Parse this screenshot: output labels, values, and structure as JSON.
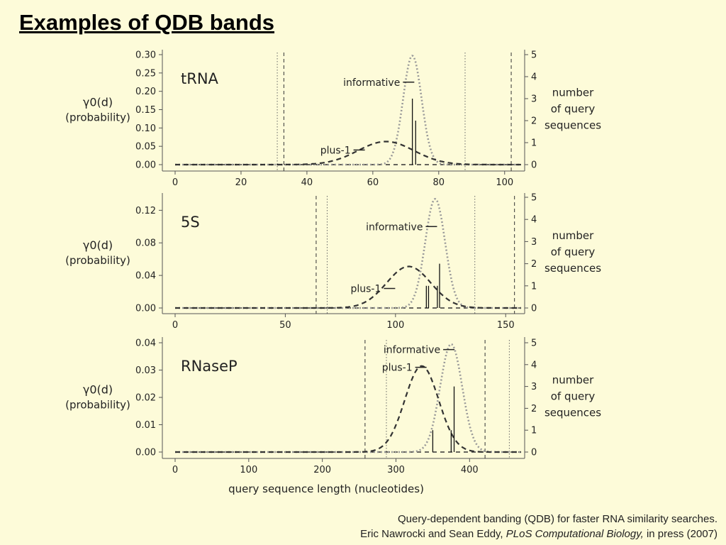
{
  "slide": {
    "title": "Examples of QDB bands"
  },
  "caption": {
    "line1": "Query-dependent banding (QDB) for faster RNA similarity searches.",
    "line2_prefix": "Eric Nawrocki and Sean Eddy, ",
    "line2_journal": "PLoS Computational Biology,",
    "line2_suffix": " in press (2007)"
  },
  "chart_data": [
    {
      "type": "line",
      "title": "tRNA",
      "ylabel": "γ0(d)",
      "ylabel_sub": "(probability)",
      "y2label": [
        "number",
        "of query",
        "sequences"
      ],
      "xlim": [
        0,
        105
      ],
      "ylim": [
        0,
        0.3
      ],
      "y2lim": [
        0,
        5
      ],
      "xticks": [
        0,
        20,
        40,
        60,
        80,
        100
      ],
      "yticks": [
        0,
        0.05,
        0.1,
        0.15,
        0.2,
        0.25,
        0.3
      ],
      "ytick_labels": [
        "0.00",
        "0.05",
        "0.10",
        "0.15",
        "0.20",
        "0.25",
        "0.30"
      ],
      "y2ticks": [
        0,
        1,
        2,
        3,
        4,
        5
      ],
      "series": [
        {
          "name": "informative",
          "style": "dotted",
          "color": "#999999",
          "mu": 72,
          "sigma": 2.8,
          "peak": 0.297
        },
        {
          "name": "plus-1",
          "style": "dashed",
          "color": "#333333",
          "mu": 64,
          "sigma": 8.5,
          "peak": 0.063
        }
      ],
      "query_counts": [
        {
          "x": 72,
          "count": 3
        },
        {
          "x": 73,
          "count": 2
        }
      ],
      "band_lines": [
        {
          "x": 31,
          "style": "dotted"
        },
        {
          "x": 33,
          "style": "dashed"
        },
        {
          "x": 88,
          "style": "dotted"
        },
        {
          "x": 102,
          "style": "dashed"
        }
      ],
      "annotations": [
        {
          "text": "informative",
          "x": 70,
          "y": 0.225
        },
        {
          "text": "plus-1",
          "x": 55,
          "y": 0.04
        }
      ]
    },
    {
      "type": "line",
      "title": "5S",
      "ylabel": "γ0(d)",
      "ylabel_sub": "(probability)",
      "y2label": [
        "number",
        "of query",
        "sequences"
      ],
      "xlim": [
        0,
        157
      ],
      "ylim": [
        0,
        0.136
      ],
      "y2lim": [
        0,
        5
      ],
      "xticks": [
        0,
        50,
        100,
        150
      ],
      "yticks": [
        0,
        0.04,
        0.08,
        0.12
      ],
      "ytick_labels": [
        "0.00",
        "0.04",
        "0.08",
        "0.12"
      ],
      "y2ticks": [
        0,
        1,
        2,
        3,
        4,
        5
      ],
      "series": [
        {
          "name": "informative",
          "style": "dotted",
          "color": "#999999",
          "mu": 118,
          "sigma": 4.5,
          "peak": 0.134
        },
        {
          "name": "plus-1",
          "style": "dashed",
          "color": "#333333",
          "mu": 106,
          "sigma": 10,
          "peak": 0.051
        }
      ],
      "query_counts": [
        {
          "x": 114,
          "count": 1
        },
        {
          "x": 115,
          "count": 1
        },
        {
          "x": 119,
          "count": 1
        },
        {
          "x": 120,
          "count": 2
        }
      ],
      "band_lines": [
        {
          "x": 64,
          "style": "dashed"
        },
        {
          "x": 69,
          "style": "dotted"
        },
        {
          "x": 136,
          "style": "dotted"
        },
        {
          "x": 154,
          "style": "dashed"
        }
      ],
      "annotations": [
        {
          "text": "informative",
          "x": 115,
          "y": 0.1
        },
        {
          "text": "plus-1",
          "x": 96,
          "y": 0.024
        }
      ]
    },
    {
      "type": "line",
      "title": "RNaseP",
      "ylabel": "γ0(d)",
      "ylabel_sub": "(probability)",
      "y2label": [
        "number",
        "of query",
        "sequences"
      ],
      "xlabel": "query sequence length (nucleotides)",
      "xlim": [
        0,
        470
      ],
      "ylim": [
        0,
        0.04
      ],
      "y2lim": [
        0,
        5
      ],
      "xticks": [
        0,
        100,
        200,
        300,
        400
      ],
      "yticks": [
        0,
        0.01,
        0.02,
        0.03,
        0.04
      ],
      "ytick_labels": [
        "0.00",
        "0.01",
        "0.02",
        "0.03",
        "0.04"
      ],
      "y2ticks": [
        0,
        1,
        2,
        3,
        4,
        5
      ],
      "series": [
        {
          "name": "informative",
          "style": "dotted",
          "color": "#999999",
          "mu": 375,
          "sigma": 15,
          "peak": 0.0395
        },
        {
          "name": "plus-1",
          "style": "dashed",
          "color": "#333333",
          "mu": 335,
          "sigma": 23,
          "peak": 0.0315
        }
      ],
      "query_counts": [
        {
          "x": 350,
          "count": 1
        },
        {
          "x": 375,
          "count": 1
        },
        {
          "x": 379,
          "count": 3
        }
      ],
      "band_lines": [
        {
          "x": 258,
          "style": "dashed"
        },
        {
          "x": 287,
          "style": "dotted"
        },
        {
          "x": 421,
          "style": "dashed"
        },
        {
          "x": 454,
          "style": "dotted"
        }
      ],
      "annotations": [
        {
          "text": "informative",
          "x": 368,
          "y": 0.0375
        },
        {
          "text": "plus-1",
          "x": 330,
          "y": 0.031
        }
      ]
    }
  ]
}
